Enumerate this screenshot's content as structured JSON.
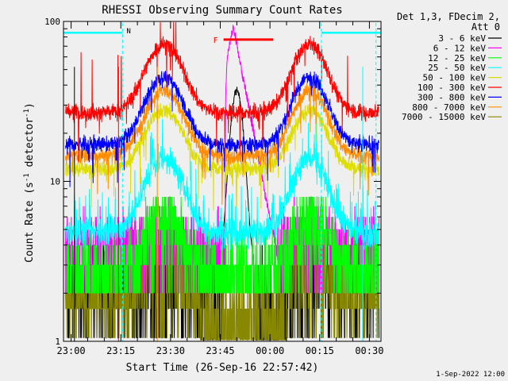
{
  "chart_data": {
    "type": "line",
    "title": "RHESSI Observing Summary Count Rates",
    "xlabel": "Start Time (26-Sep-16 22:57:42)",
    "ylabel": "Count Rate (s",
    "ylabel_sup": "-1",
    "ylabel_tail": " detector",
    "ylabel_sup2": "-1",
    "ylabel_end": ")",
    "yscale": "log",
    "ylim": [
      1,
      100
    ],
    "y_tick_labels": [
      "1",
      "10",
      "100"
    ],
    "x_start_min": 1377.7,
    "x_end_min": 1473.5,
    "x_ticks": [
      {
        "min": 1380,
        "label": "23:00"
      },
      {
        "min": 1395,
        "label": "23:15"
      },
      {
        "min": 1410,
        "label": "23:30"
      },
      {
        "min": 1425,
        "label": "23:45"
      },
      {
        "min": 1440,
        "label": "00:00"
      },
      {
        "min": 1455,
        "label": "00:15"
      },
      {
        "min": 1470,
        "label": "00:30"
      }
    ],
    "legend_header": [
      "Det 1,3, FDecim 2,",
      "Att 0"
    ],
    "series": [
      {
        "name": "3 - 6 keV",
        "color": "#000000",
        "base": 2.3,
        "peak": 3.2
      },
      {
        "name": "6 - 12 keV",
        "color": "#ff00ff",
        "base": 4.0,
        "peak": 5.0
      },
      {
        "name": "12 - 25 keV",
        "color": "#00ff00",
        "base": 2.6,
        "peak": 6.5
      },
      {
        "name": "25 - 50 keV",
        "color": "#00ffff",
        "base": 4.8,
        "peak": 14
      },
      {
        "name": "50 - 100 keV",
        "color": "#dddd00",
        "base": 12,
        "peak": 28
      },
      {
        "name": "100 - 300 keV",
        "color": "#ff0000",
        "base": 27,
        "peak": 72
      },
      {
        "name": "300 - 800 keV",
        "color": "#0000ff",
        "base": 17,
        "peak": 45
      },
      {
        "name": "800 - 7000 keV",
        "color": "#ff8c00",
        "base": 14.5,
        "peak": 37
      },
      {
        "name": "7000 - 15000 keV",
        "color": "#888800",
        "base": 1.9,
        "peak": 3.4
      }
    ],
    "orbit_peaks_min": [
      1408,
      1452
    ],
    "saa_cyan_segments": [
      {
        "from": 1377.7,
        "to": 1395.5
      },
      {
        "from": 1455.5,
        "to": 1473.5
      }
    ],
    "night_marker_label": "N",
    "flare_marker_label": "F",
    "flare_bar": {
      "from": 1426,
      "to": 1441,
      "level": 77
    },
    "flare_magenta_peak_min": 1429,
    "flare_black_peak_min": 1430,
    "footer_date": "1-Sep-2022 12:00"
  }
}
